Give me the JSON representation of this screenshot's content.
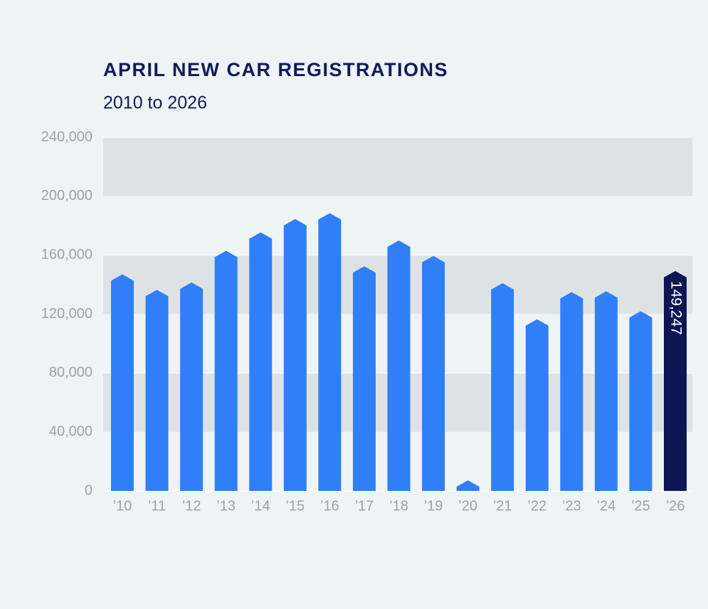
{
  "chart_data": {
    "type": "bar",
    "title": "APRIL NEW CAR REGISTRATIONS",
    "subtitle": "2010 to 2026",
    "categories": [
      "’10",
      "’11",
      "’12",
      "’13",
      "’14",
      "’15",
      "’16",
      "’17",
      "’18",
      "’19",
      "’20",
      "’21",
      "’22",
      "’23",
      "’24",
      "’25",
      "’26"
    ],
    "values": [
      147000,
      136500,
      141500,
      163000,
      175500,
      184500,
      188500,
      152500,
      170000,
      159500,
      7200,
      141000,
      116500,
      135000,
      135500,
      122000,
      149247
    ],
    "value_labels": [
      null,
      null,
      null,
      null,
      null,
      null,
      null,
      null,
      null,
      null,
      null,
      null,
      null,
      null,
      null,
      null,
      "149,247"
    ],
    "colors": [
      "#2f7ff8",
      "#2f7ff8",
      "#2f7ff8",
      "#2f7ff8",
      "#2f7ff8",
      "#2f7ff8",
      "#2f7ff8",
      "#2f7ff8",
      "#2f7ff8",
      "#2f7ff8",
      "#2f7ff8",
      "#2f7ff8",
      "#2f7ff8",
      "#2f7ff8",
      "#2f7ff8",
      "#2f7ff8",
      "#0c1654"
    ],
    "ylim": [
      0,
      240000
    ],
    "yticks": [
      0,
      {
        "value": 40000,
        "label": "40,000"
      },
      {
        "value": 80000,
        "label": "80,000"
      },
      {
        "value": 120000,
        "label": "120,000"
      },
      {
        "value": 160000,
        "label": "160,000"
      },
      {
        "value": 200000,
        "label": "200,000"
      },
      {
        "value": 240000,
        "label": "240,000"
      }
    ],
    "grid": "bands",
    "band_color": "#dde3e4"
  }
}
